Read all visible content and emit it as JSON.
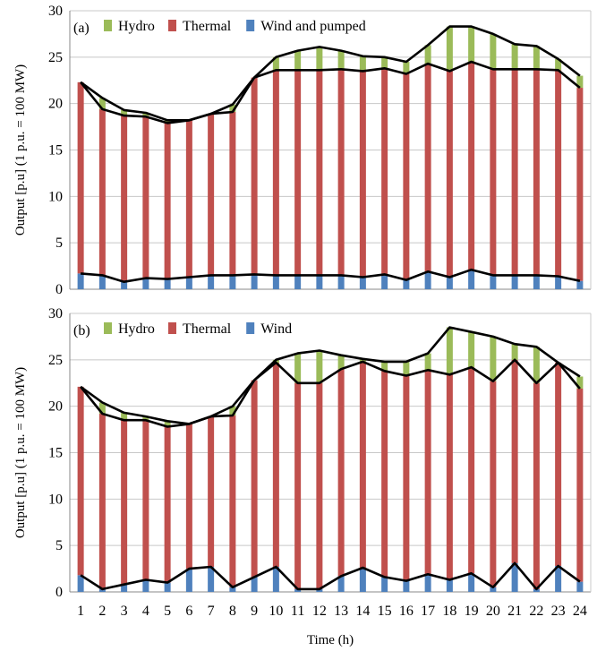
{
  "colors": {
    "hydro": "#9bbb59",
    "thermal": "#c0504d",
    "wind": "#4f81bd",
    "line": "#000000",
    "grid": "#c8c8c8"
  },
  "chart_data": [
    {
      "type": "bar",
      "stacked": true,
      "panel_label": "(a)",
      "ylabel": "Output [p.u] (1 p.u. = 100 MW)",
      "xlabel": "",
      "ylim": [
        0,
        30
      ],
      "y_ticks": [
        "0",
        "5",
        "10",
        "15",
        "20",
        "25",
        "30"
      ],
      "x_ticks": [],
      "grid": true,
      "legend_position": "top-left",
      "categories": [
        1,
        2,
        3,
        4,
        5,
        6,
        7,
        8,
        9,
        10,
        11,
        12,
        13,
        14,
        15,
        16,
        17,
        18,
        19,
        20,
        21,
        22,
        23,
        24
      ],
      "series": [
        {
          "name": "Hydro",
          "key": "hydro",
          "values": [
            0,
            1.2,
            0.6,
            0.4,
            0.3,
            0,
            0,
            0.8,
            0,
            1.4,
            2.1,
            2.5,
            2.0,
            1.6,
            1.2,
            1.3,
            2.0,
            4.8,
            3.8,
            3.8,
            2.7,
            2.5,
            1.2,
            1.3
          ]
        },
        {
          "name": "Thermal",
          "key": "thermal",
          "values": [
            20.6,
            17.9,
            17.9,
            17.4,
            16.8,
            16.9,
            17.4,
            17.6,
            21.2,
            22.1,
            22.1,
            22.1,
            22.2,
            22.2,
            22.2,
            22.2,
            22.4,
            22.2,
            22.4,
            22.2,
            22.2,
            22.2,
            22.2,
            20.8
          ]
        },
        {
          "name": "Wind and pumped",
          "key": "wind",
          "values": [
            1.7,
            1.5,
            0.8,
            1.2,
            1.1,
            1.3,
            1.5,
            1.5,
            1.6,
            1.5,
            1.5,
            1.5,
            1.5,
            1.3,
            1.6,
            1.0,
            1.9,
            1.3,
            2.1,
            1.5,
            1.5,
            1.5,
            1.4,
            0.9
          ]
        }
      ]
    },
    {
      "type": "bar",
      "stacked": true,
      "panel_label": "(b)",
      "ylabel": "Output [p.u] (1 p.u. = 100 MW)",
      "xlabel": "Time (h)",
      "ylim": [
        0,
        30
      ],
      "y_ticks": [
        "0",
        "5",
        "10",
        "15",
        "20",
        "25",
        "30"
      ],
      "x_ticks": [
        "1",
        "2",
        "3",
        "4",
        "5",
        "6",
        "7",
        "8",
        "9",
        "10",
        "11",
        "12",
        "13",
        "14",
        "15",
        "16",
        "17",
        "18",
        "19",
        "20",
        "21",
        "22",
        "23",
        "24"
      ],
      "grid": true,
      "legend_position": "top-left",
      "categories": [
        1,
        2,
        3,
        4,
        5,
        6,
        7,
        8,
        9,
        10,
        11,
        12,
        13,
        14,
        15,
        16,
        17,
        18,
        19,
        20,
        21,
        22,
        23,
        24
      ],
      "series": [
        {
          "name": "Hydro",
          "key": "hydro",
          "values": [
            0,
            1.2,
            0.8,
            0.4,
            0.6,
            0,
            0,
            1.0,
            0,
            0.3,
            3.2,
            3.5,
            1.5,
            0.3,
            1.0,
            1.5,
            1.8,
            5.1,
            3.8,
            4.8,
            1.7,
            3.9,
            0,
            1.3
          ]
        },
        {
          "name": "Thermal",
          "key": "thermal",
          "values": [
            20.3,
            18.9,
            17.7,
            17.2,
            16.8,
            15.6,
            16.2,
            18.5,
            21.2,
            22.0,
            22.2,
            22.2,
            22.3,
            22.2,
            22.2,
            22.1,
            22.0,
            22.1,
            22.2,
            22.2,
            21.9,
            22.2,
            21.9,
            20.8
          ]
        },
        {
          "name": "Wind",
          "key": "wind",
          "values": [
            1.8,
            0.3,
            0.8,
            1.3,
            1.0,
            2.5,
            2.7,
            0.5,
            1.6,
            2.7,
            0.3,
            0.3,
            1.7,
            2.6,
            1.6,
            1.2,
            1.9,
            1.3,
            2.0,
            0.5,
            3.1,
            0.3,
            2.8,
            1.1
          ]
        }
      ]
    }
  ]
}
